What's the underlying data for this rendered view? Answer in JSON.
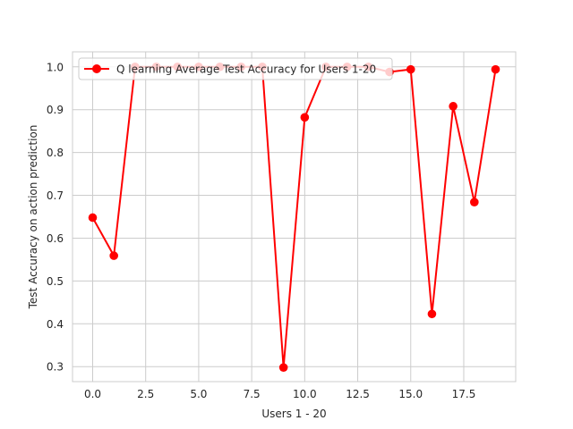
{
  "chart_data": {
    "type": "line",
    "title": "",
    "xlabel": "Users 1 - 20",
    "ylabel": "Test Accuracy on action prediction",
    "xlim": [
      -0.95,
      19.95
    ],
    "ylim": [
      0.265,
      1.035
    ],
    "x_ticks": [
      0.0,
      2.5,
      5.0,
      7.5,
      10.0,
      12.5,
      15.0,
      17.5
    ],
    "x_tick_labels": [
      "0.0",
      "2.5",
      "5.0",
      "7.5",
      "10.0",
      "12.5",
      "15.0",
      "17.5"
    ],
    "y_ticks": [
      0.3,
      0.4,
      0.5,
      0.6,
      0.7,
      0.8,
      0.9,
      1.0
    ],
    "y_tick_labels": [
      "0.3",
      "0.4",
      "0.5",
      "0.6",
      "0.7",
      "0.8",
      "0.9",
      "1.0"
    ],
    "grid": true,
    "legend_position": "upper-left",
    "series": [
      {
        "name": "Q learning Average Test Accuracy for Users 1-20",
        "color": "#ff0000",
        "marker": "circle",
        "x": [
          0,
          1,
          2,
          3,
          4,
          5,
          6,
          7,
          8,
          9,
          10,
          11,
          12,
          13,
          14,
          15,
          16,
          17,
          18,
          19
        ],
        "y": [
          0.648,
          0.559,
          1.0,
          1.0,
          1.0,
          1.0,
          1.0,
          1.0,
          1.0,
          0.298,
          0.882,
          1.0,
          1.0,
          1.0,
          0.988,
          0.994,
          0.423,
          0.908,
          0.684,
          0.994
        ]
      }
    ]
  }
}
